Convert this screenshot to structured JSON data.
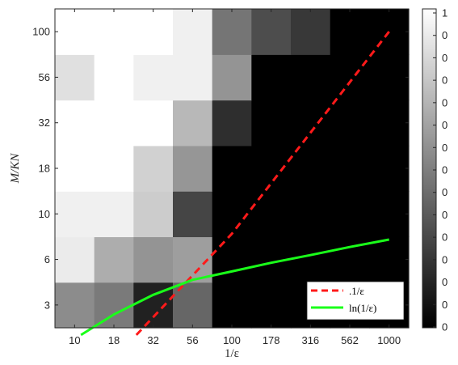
{
  "chart_data": {
    "type": "heatmap",
    "title": "",
    "xlabel": "1/ε",
    "ylabel": "M/KN",
    "x_categories": [
      "10",
      "18",
      "32",
      "56",
      "100",
      "178",
      "316",
      "562",
      "1000"
    ],
    "y_categories": [
      "3",
      "6",
      "10",
      "18",
      "32",
      "56",
      "100"
    ],
    "x_values": [
      10,
      18,
      32,
      56,
      100,
      178,
      316,
      562,
      1000
    ],
    "y_values": [
      3,
      6,
      10,
      18,
      32,
      56,
      100
    ],
    "z_range": [
      0,
      1
    ],
    "colormap": "gray",
    "z_rows_bottom_to_top": [
      [
        0.55,
        0.48,
        0.13,
        0.4,
        0,
        0,
        0,
        0,
        0
      ],
      [
        0.92,
        0.68,
        0.58,
        0.62,
        0,
        0,
        0,
        0,
        0
      ],
      [
        0.94,
        0.94,
        0.8,
        0.27,
        0,
        0,
        0,
        0,
        0
      ],
      [
        1.0,
        1.0,
        0.82,
        0.59,
        0,
        0,
        0,
        0,
        0
      ],
      [
        1.0,
        1.0,
        1.0,
        0.72,
        0.18,
        0,
        0,
        0,
        0
      ],
      [
        0.88,
        1.0,
        0.94,
        0.94,
        0.58,
        0,
        0,
        0,
        0
      ],
      [
        1.0,
        1.0,
        1.0,
        0.94,
        0.46,
        0.3,
        0.22,
        0,
        0
      ]
    ],
    "series": [
      {
        "name": ".1/ε",
        "color": "#ff1a1a",
        "style": "dashed",
        "x": [
          25,
          100,
          1000
        ],
        "y": [
          1.9,
          8,
          100
        ]
      },
      {
        "name": "ln(1/ε)",
        "color": "#1aff1a",
        "style": "solid",
        "x": [
          11,
          18,
          32,
          56,
          100,
          178,
          316,
          562,
          1000
        ],
        "y": [
          1.9,
          2.6,
          3.5,
          4.4,
          5,
          5.7,
          6.3,
          6.9,
          7.5
        ]
      }
    ],
    "legend": {
      "position": "bottom-right",
      "entries": [
        ".1/ε",
        "ln(1/ε)"
      ]
    },
    "colorbar": {
      "position": "right",
      "tick_labels": [
        "1",
        "0",
        "0",
        "0",
        "0",
        "0",
        "0",
        "0",
        "0",
        "0",
        "0",
        "0",
        "0",
        "0",
        "0"
      ]
    }
  }
}
